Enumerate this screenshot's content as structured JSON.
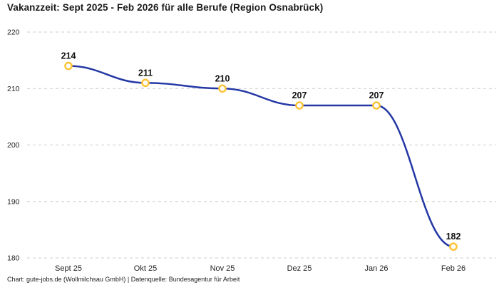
{
  "title": "Vakanzzeit: Sept 2025 - Feb 2026 für alle Berufe (Region Osnabrück)",
  "footer": "Chart: gute-jobs.de (Wollmilchsau GmbH) | Datenquelle: Bundesagentur für Arbeit",
  "chart_data": {
    "type": "line",
    "categories": [
      "Sept 25",
      "Okt 25",
      "Nov 25",
      "Dez 25",
      "Jan 26",
      "Feb 26"
    ],
    "values": [
      214,
      211,
      210,
      207,
      207,
      182
    ],
    "title": "Vakanzzeit: Sept 2025 - Feb 2026 für alle Berufe (Region Osnabrück)",
    "xlabel": "",
    "ylabel": "",
    "ylim": [
      180,
      220
    ],
    "yticks": [
      220,
      210,
      200,
      190,
      180
    ],
    "grid": "horizontal-dashed",
    "legend_position": "none",
    "data_labels": true,
    "colors": {
      "line": "#2438a5",
      "marker_stroke": "#ffc233",
      "marker_fill": "#ffffff",
      "gridline": "#cccccc",
      "point_label": "#111111",
      "tick_label": "#222222",
      "title": "#1a1a1a"
    }
  }
}
